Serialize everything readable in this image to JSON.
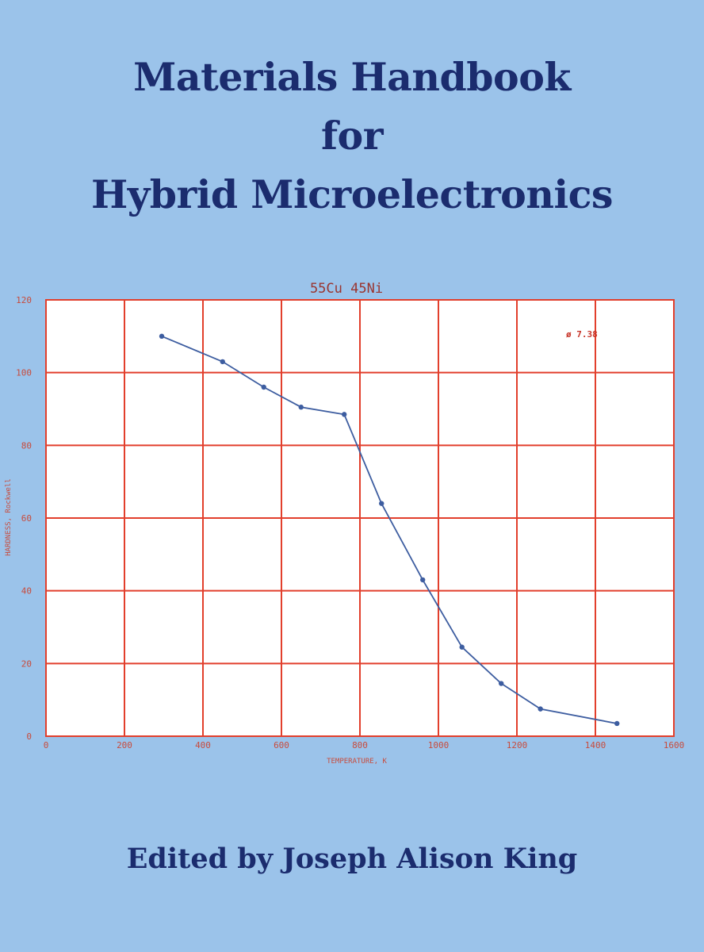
{
  "book": {
    "title_line1": "Materials Handbook",
    "title_line2": "for",
    "title_line3": "Hybrid Microelectronics",
    "editor_credit": "Edited by Joseph Alison King"
  },
  "colors": {
    "background": "#9bc3ea",
    "title_text": "#1b2c6e",
    "grid": "#e23f2c",
    "data_line": "#3d5da0"
  },
  "chart_data": {
    "type": "line",
    "title": "55Cu 45Ni",
    "xlabel": "TEMPERATURE, K",
    "ylabel": "HARDNESS, Rockwell",
    "annotation": "ø 7.38",
    "xlim": [
      0,
      1600
    ],
    "ylim": [
      0,
      120
    ],
    "x_ticks": [
      "0",
      "200",
      "400",
      "600",
      "800",
      "1000",
      "1200",
      "1400",
      "1600"
    ],
    "y_ticks": [
      "0",
      "20",
      "40",
      "60",
      "80",
      "100",
      "120"
    ],
    "grid": true,
    "series": [
      {
        "x": [
          295,
          450,
          555,
          650,
          760,
          855,
          960,
          1060,
          1160,
          1260,
          1455
        ],
        "y": [
          110,
          103,
          96,
          90.5,
          88.5,
          64,
          43,
          24.5,
          14.5,
          7.5,
          3.5
        ]
      }
    ]
  }
}
